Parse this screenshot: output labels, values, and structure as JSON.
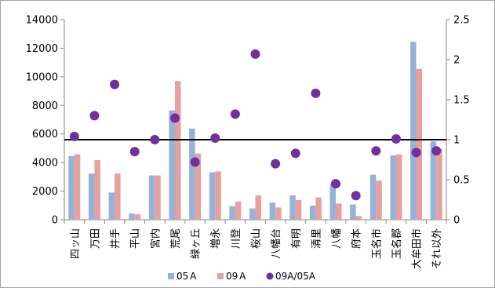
{
  "chart_data": {
    "type": "bar",
    "categories": [
      "四ッ山",
      "万田",
      "井手",
      "平山",
      "宮内",
      "荒尾",
      "緑ヶ丘",
      "増永",
      "川登",
      "桜山",
      "八幡台",
      "有明",
      "清里",
      "八幡",
      "府本",
      "玉名市",
      "玉名郡",
      "大牟田市",
      "それ以外"
    ],
    "series": [
      {
        "name": "05A",
        "type": "bar",
        "axis": "left",
        "color": "#95b3d7",
        "values": [
          4450,
          3230,
          1900,
          430,
          3100,
          7650,
          6380,
          3320,
          950,
          790,
          1200,
          1700,
          980,
          2500,
          1070,
          3150,
          4500,
          12450,
          5480
        ]
      },
      {
        "name": "09A",
        "type": "bar",
        "axis": "left",
        "color": "#e6a09e",
        "values": [
          4580,
          4170,
          3230,
          380,
          3100,
          9700,
          4630,
          3380,
          1280,
          1700,
          860,
          1380,
          1560,
          1130,
          260,
          2740,
          4570,
          10550,
          4980
        ]
      },
      {
        "name": "09A/05A",
        "type": "scatter",
        "axis": "right",
        "color": "#7030a0",
        "values": [
          1.04,
          1.3,
          1.69,
          0.85,
          1.0,
          1.27,
          0.72,
          1.02,
          1.32,
          2.07,
          0.7,
          0.83,
          1.58,
          0.45,
          0.3,
          0.86,
          1.01,
          0.84,
          0.86
        ]
      }
    ],
    "y_left": {
      "min": 0,
      "max": 14000,
      "ticks": [
        "0",
        "2000",
        "4000",
        "6000",
        "8000",
        "10000",
        "12000",
        "14000"
      ]
    },
    "y_right": {
      "min": 0,
      "max": 2.5,
      "ticks": [
        "0",
        "0.5",
        "1",
        "1.5",
        "2",
        "2.5"
      ]
    },
    "reference_line": {
      "axis": "right",
      "value": 1.0,
      "color": "#000000"
    },
    "grid": false,
    "legend": {
      "position": "bottom",
      "labels": [
        "05Ａ",
        "09Ａ",
        "09A/05A"
      ]
    }
  }
}
